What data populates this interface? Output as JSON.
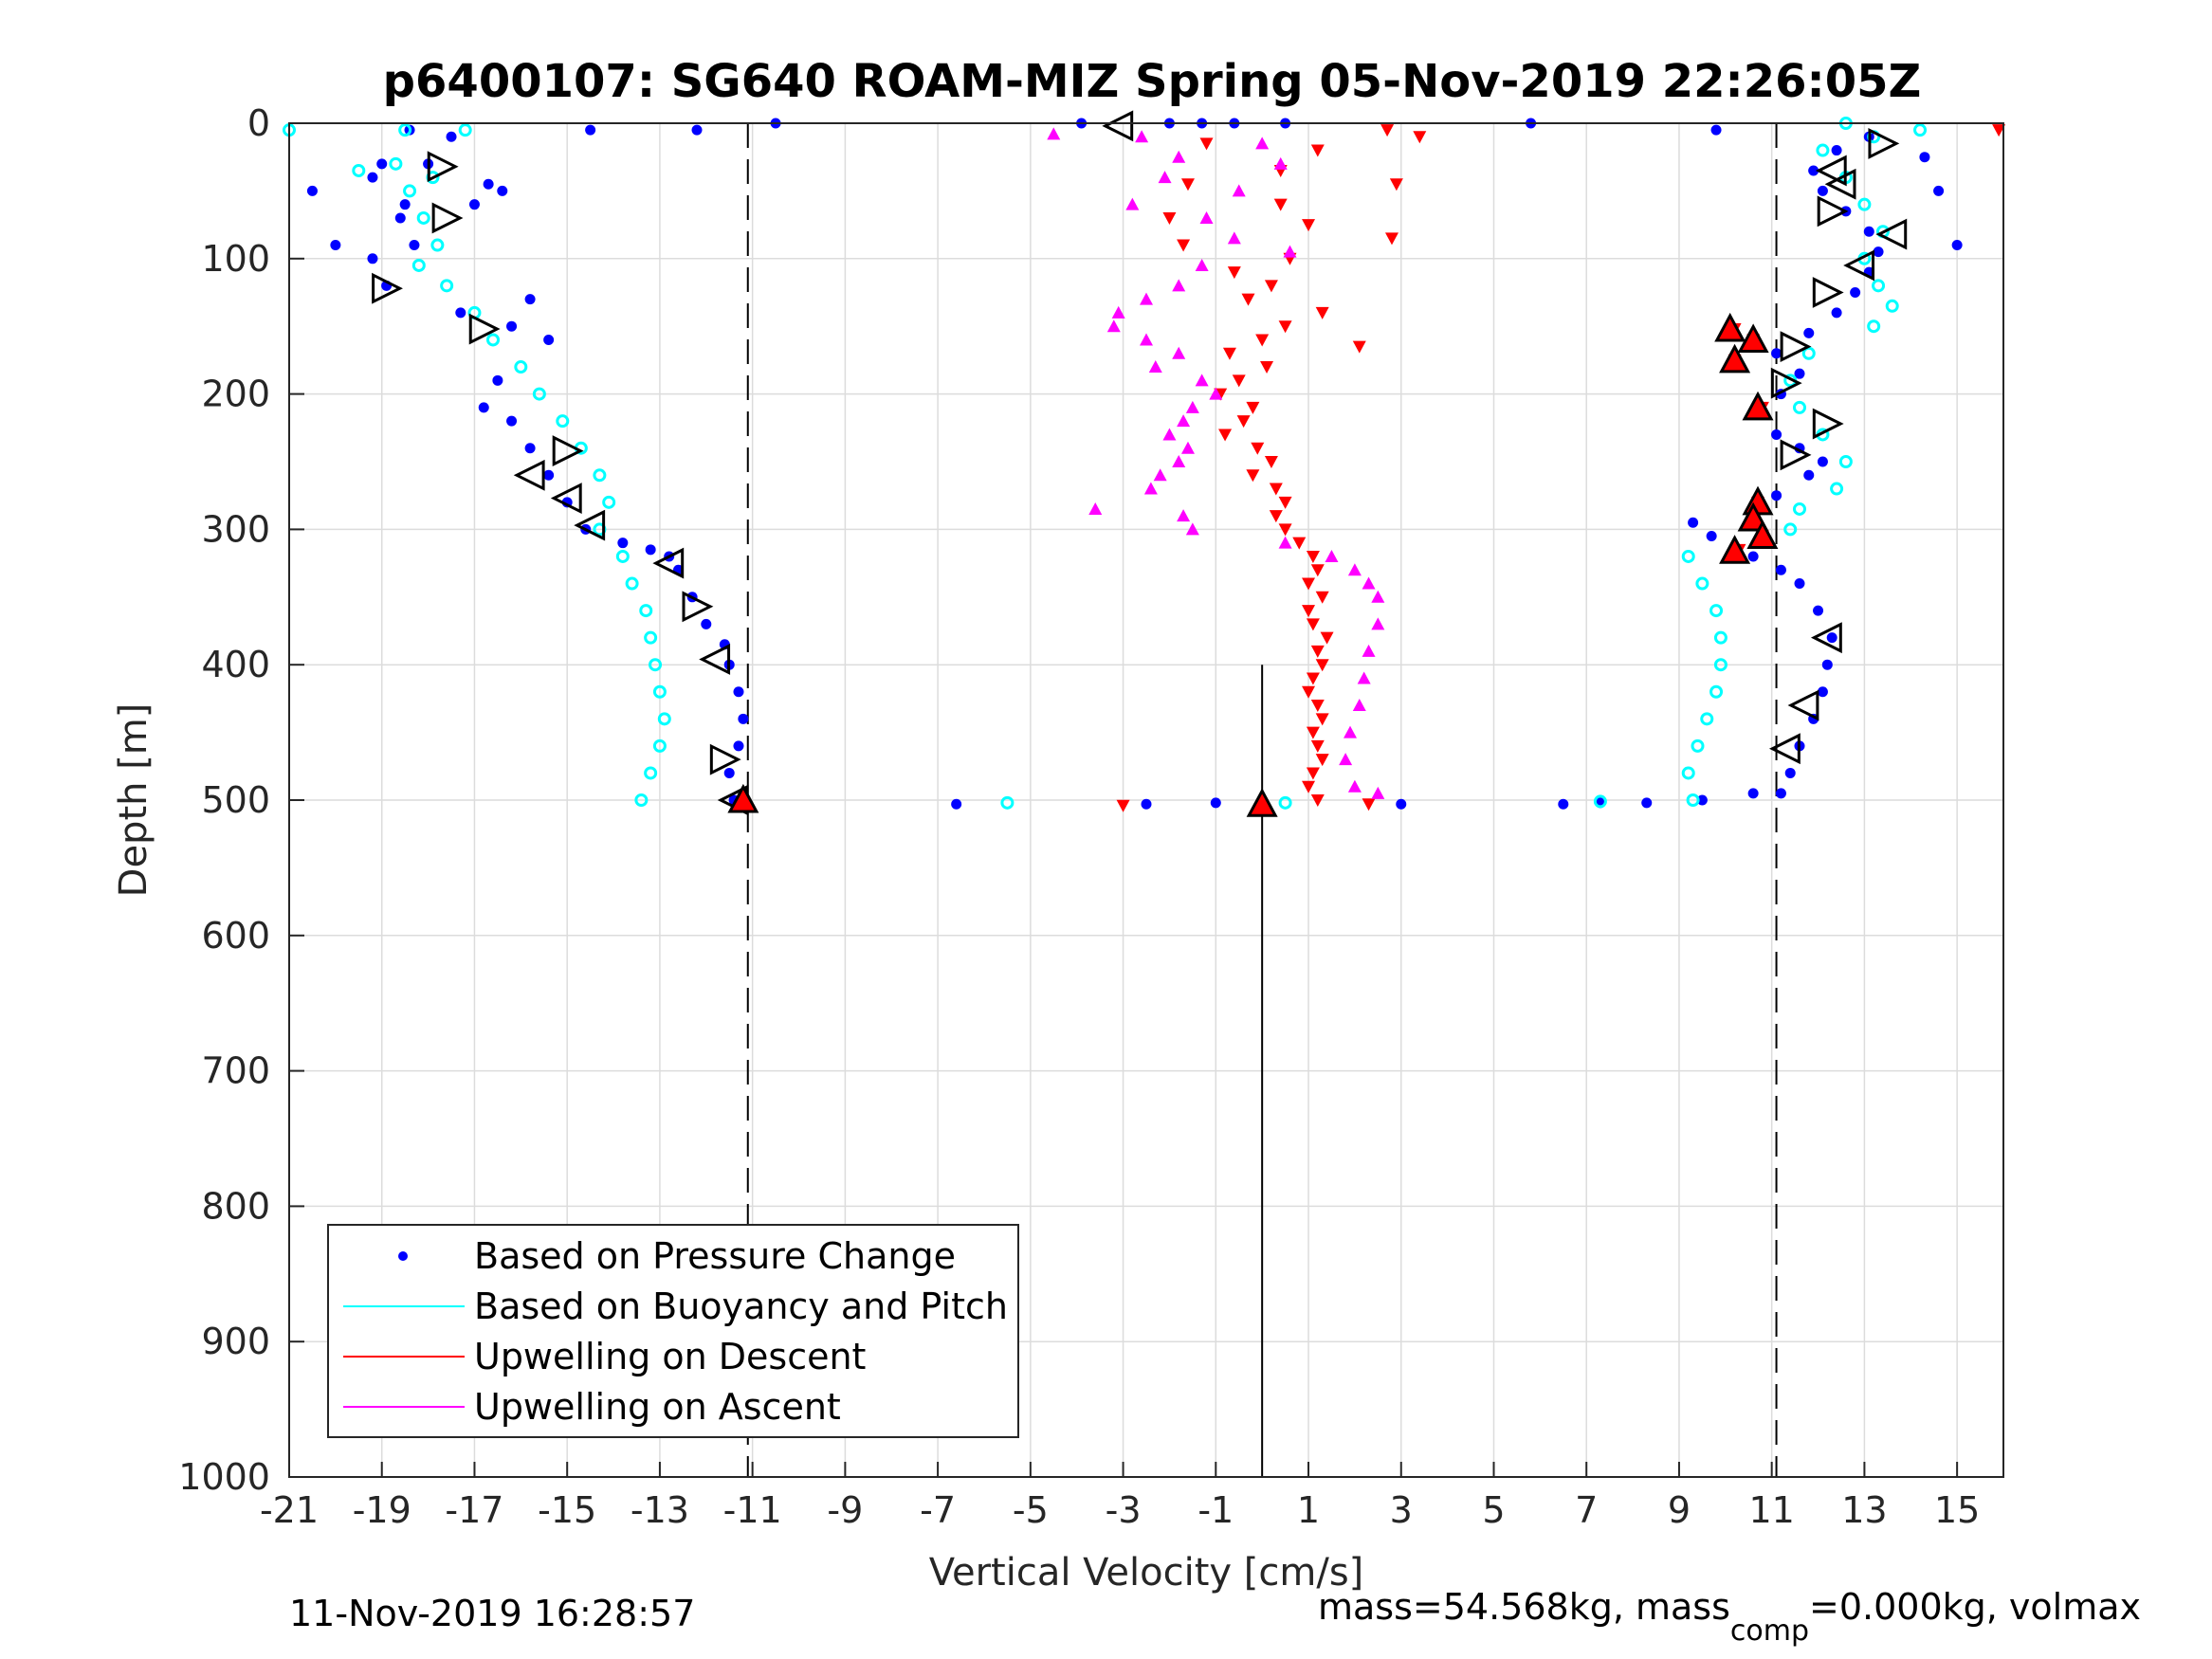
{
  "chart_data": {
    "type": "scatter",
    "title": "p6400107: SG640 ROAM-MIZ Spring 05-Nov-2019 22:26:05Z",
    "xlabel": "Vertical Velocity [cm/s]",
    "ylabel": "Depth [m]",
    "xlim": [
      -21,
      16
    ],
    "ylim": [
      0,
      1000
    ],
    "y_reversed": true,
    "xticks": [
      -21,
      -19,
      -17,
      -15,
      -13,
      -11,
      -9,
      -7,
      -5,
      -3,
      -1,
      1,
      3,
      5,
      7,
      9,
      11,
      13,
      15
    ],
    "yticks": [
      0,
      100,
      200,
      300,
      400,
      500,
      600,
      700,
      800,
      900,
      1000
    ],
    "grid": true,
    "legend_position": "bottom-left",
    "reference_lines": {
      "dashed_x": [
        -11.1,
        11.1
      ],
      "solid_x": [
        0
      ]
    },
    "series": [
      {
        "name": "Based on Pressure Change",
        "color": "#0000ff",
        "points": [
          [
            -20.5,
            50
          ],
          [
            -20,
            90
          ],
          [
            -18.9,
            120
          ],
          [
            -19.2,
            40
          ],
          [
            -18.3,
            90
          ],
          [
            -18.6,
            70
          ],
          [
            -18,
            30
          ],
          [
            -17.5,
            10
          ],
          [
            -17,
            60
          ],
          [
            -16.7,
            45
          ],
          [
            -16.4,
            50
          ],
          [
            -15.4,
            160
          ],
          [
            -15.8,
            130
          ],
          [
            -16.2,
            150
          ],
          [
            -17.3,
            140
          ],
          [
            -16.5,
            190
          ],
          [
            -16.8,
            210
          ],
          [
            -16.2,
            220
          ],
          [
            -15.8,
            240
          ],
          [
            -15.4,
            260
          ],
          [
            -15,
            280
          ],
          [
            -14.6,
            300
          ],
          [
            -13.8,
            310
          ],
          [
            -13.2,
            315
          ],
          [
            -12.8,
            320
          ],
          [
            -12.6,
            330
          ],
          [
            -12.3,
            350
          ],
          [
            -12,
            370
          ],
          [
            -11.6,
            385
          ],
          [
            -11.5,
            400
          ],
          [
            -11.3,
            420
          ],
          [
            -11.2,
            440
          ],
          [
            -11.3,
            460
          ],
          [
            -11.5,
            480
          ],
          [
            -11.4,
            500
          ],
          [
            -6.6,
            503
          ],
          [
            -2.5,
            503
          ],
          [
            -1,
            502
          ],
          [
            3,
            503
          ],
          [
            6.5,
            503
          ],
          [
            7.3,
            502
          ],
          [
            8.3,
            502
          ],
          [
            9.5,
            500
          ],
          [
            10.6,
            495
          ],
          [
            11.2,
            495
          ],
          [
            11.4,
            480
          ],
          [
            11.6,
            460
          ],
          [
            11.9,
            440
          ],
          [
            12.1,
            420
          ],
          [
            12.2,
            400
          ],
          [
            12.3,
            380
          ],
          [
            12,
            360
          ],
          [
            11.6,
            340
          ],
          [
            11.2,
            330
          ],
          [
            10.6,
            320
          ],
          [
            10.2,
            315
          ],
          [
            9.7,
            305
          ],
          [
            9.3,
            295
          ],
          [
            10.6,
            285
          ],
          [
            11.1,
            275
          ],
          [
            11.8,
            260
          ],
          [
            12.1,
            250
          ],
          [
            11.6,
            240
          ],
          [
            11.1,
            230
          ],
          [
            10.6,
            215
          ],
          [
            11.2,
            200
          ],
          [
            11.6,
            185
          ],
          [
            11.1,
            170
          ],
          [
            11.8,
            155
          ],
          [
            12.4,
            140
          ],
          [
            12.8,
            125
          ],
          [
            13.1,
            110
          ],
          [
            13.3,
            95
          ],
          [
            13.1,
            80
          ],
          [
            12.6,
            65
          ],
          [
            12.1,
            50
          ],
          [
            11.9,
            35
          ],
          [
            12.4,
            20
          ],
          [
            13.1,
            10
          ],
          [
            14.3,
            25
          ],
          [
            14.6,
            50
          ],
          [
            15,
            90
          ],
          [
            9.8,
            5
          ],
          [
            5.8,
            0
          ],
          [
            -10.5,
            0
          ],
          [
            -12.2,
            5
          ],
          [
            -14.5,
            5
          ],
          [
            -18.4,
            5
          ],
          [
            -19,
            30
          ],
          [
            -18.5,
            60
          ],
          [
            -19.2,
            100
          ],
          [
            -3.9,
            0
          ],
          [
            -2,
            0
          ],
          [
            -1.3,
            0
          ],
          [
            -0.6,
            0
          ],
          [
            0.5,
            0
          ]
        ]
      },
      {
        "name": "Based on Buoyancy and Pitch",
        "color": "#00ffff",
        "points": [
          [
            -21,
            5
          ],
          [
            -18.5,
            5
          ],
          [
            -17.2,
            5
          ],
          [
            -19.5,
            35
          ],
          [
            -18.7,
            30
          ],
          [
            -17.9,
            40
          ],
          [
            -18.4,
            50
          ],
          [
            -18.1,
            70
          ],
          [
            -17.8,
            90
          ],
          [
            -18.2,
            105
          ],
          [
            -17.6,
            120
          ],
          [
            -17,
            140
          ],
          [
            -16.6,
            160
          ],
          [
            -16,
            180
          ],
          [
            -15.6,
            200
          ],
          [
            -15.1,
            220
          ],
          [
            -14.7,
            240
          ],
          [
            -14.3,
            260
          ],
          [
            -14.1,
            280
          ],
          [
            -14.3,
            300
          ],
          [
            -13.8,
            320
          ],
          [
            -13.6,
            340
          ],
          [
            -13.3,
            360
          ],
          [
            -13.2,
            380
          ],
          [
            -13.1,
            400
          ],
          [
            -13,
            420
          ],
          [
            -12.9,
            440
          ],
          [
            -13,
            460
          ],
          [
            -13.2,
            480
          ],
          [
            -13.4,
            500
          ],
          [
            -5.5,
            502
          ],
          [
            0.5,
            502
          ],
          [
            7.3,
            501
          ],
          [
            9.3,
            500
          ],
          [
            9.2,
            480
          ],
          [
            9.4,
            460
          ],
          [
            9.6,
            440
          ],
          [
            9.8,
            420
          ],
          [
            9.9,
            400
          ],
          [
            9.9,
            380
          ],
          [
            9.8,
            360
          ],
          [
            9.5,
            340
          ],
          [
            9.2,
            320
          ],
          [
            11.4,
            300
          ],
          [
            11.6,
            285
          ],
          [
            12.4,
            270
          ],
          [
            12.6,
            250
          ],
          [
            12.1,
            230
          ],
          [
            11.6,
            210
          ],
          [
            11.4,
            190
          ],
          [
            11.8,
            170
          ],
          [
            13.2,
            150
          ],
          [
            13.6,
            135
          ],
          [
            13.3,
            120
          ],
          [
            13,
            100
          ],
          [
            13.4,
            80
          ],
          [
            13,
            60
          ],
          [
            12.6,
            40
          ],
          [
            12.1,
            20
          ],
          [
            13.2,
            10
          ],
          [
            12.6,
            0
          ],
          [
            14.2,
            5
          ]
        ]
      },
      {
        "name": "Upwelling on Descent",
        "color": "#ff0000",
        "points": [
          [
            2.7,
            5
          ],
          [
            3.4,
            10
          ],
          [
            1.2,
            20
          ],
          [
            -1.2,
            15
          ],
          [
            0.4,
            35
          ],
          [
            -1.6,
            45
          ],
          [
            2.9,
            45
          ],
          [
            0.4,
            60
          ],
          [
            -2,
            70
          ],
          [
            1,
            75
          ],
          [
            -1.7,
            90
          ],
          [
            2.8,
            85
          ],
          [
            0.6,
            100
          ],
          [
            -0.6,
            110
          ],
          [
            0.2,
            120
          ],
          [
            -0.3,
            130
          ],
          [
            1.3,
            140
          ],
          [
            0.5,
            150
          ],
          [
            0,
            160
          ],
          [
            2.1,
            165
          ],
          [
            -0.7,
            170
          ],
          [
            0.1,
            180
          ],
          [
            -0.5,
            190
          ],
          [
            -0.9,
            200
          ],
          [
            -0.2,
            210
          ],
          [
            -0.4,
            220
          ],
          [
            -0.8,
            230
          ],
          [
            -0.1,
            240
          ],
          [
            0.2,
            250
          ],
          [
            -0.2,
            260
          ],
          [
            0.3,
            270
          ],
          [
            0.5,
            280
          ],
          [
            0.3,
            290
          ],
          [
            0.5,
            300
          ],
          [
            0.8,
            310
          ],
          [
            1.1,
            320
          ],
          [
            1.2,
            330
          ],
          [
            1,
            340
          ],
          [
            1.3,
            350
          ],
          [
            1,
            360
          ],
          [
            1.1,
            370
          ],
          [
            1.4,
            380
          ],
          [
            1.2,
            390
          ],
          [
            1.3,
            400
          ],
          [
            1.1,
            410
          ],
          [
            1,
            420
          ],
          [
            1.2,
            430
          ],
          [
            1.3,
            440
          ],
          [
            1.1,
            450
          ],
          [
            1.2,
            460
          ],
          [
            1.3,
            470
          ],
          [
            1.1,
            480
          ],
          [
            1,
            490
          ],
          [
            1.2,
            500
          ],
          [
            -3,
            504
          ],
          [
            2.3,
            503
          ],
          [
            15.9,
            5
          ],
          [
            10.2,
            152
          ],
          [
            10.6,
            160
          ],
          [
            10.2,
            175
          ],
          [
            10.8,
            210
          ],
          [
            10.7,
            280
          ],
          [
            10.6,
            290
          ],
          [
            10.8,
            305
          ],
          [
            10.3,
            315
          ]
        ]
      },
      {
        "name": "Upwelling on Ascent",
        "color": "#ff00ff",
        "points": [
          [
            -4.5,
            8
          ],
          [
            -2.6,
            10
          ],
          [
            0,
            15
          ],
          [
            -1.8,
            25
          ],
          [
            0.4,
            30
          ],
          [
            -2.1,
            40
          ],
          [
            -0.5,
            50
          ],
          [
            -2.8,
            60
          ],
          [
            -1.2,
            70
          ],
          [
            -0.6,
            85
          ],
          [
            0.6,
            95
          ],
          [
            -1.3,
            105
          ],
          [
            -1.8,
            120
          ],
          [
            -2.5,
            130
          ],
          [
            -3.1,
            140
          ],
          [
            -3.2,
            150
          ],
          [
            -2.5,
            160
          ],
          [
            -1.8,
            170
          ],
          [
            -2.3,
            180
          ],
          [
            -1.3,
            190
          ],
          [
            -1,
            200
          ],
          [
            -1.5,
            210
          ],
          [
            -1.7,
            220
          ],
          [
            -2,
            230
          ],
          [
            -1.6,
            240
          ],
          [
            -1.8,
            250
          ],
          [
            -2.2,
            260
          ],
          [
            -2.4,
            270
          ],
          [
            -3.6,
            285
          ],
          [
            -1.7,
            290
          ],
          [
            -1.5,
            300
          ],
          [
            0.5,
            310
          ],
          [
            1.5,
            320
          ],
          [
            2,
            330
          ],
          [
            2.3,
            340
          ],
          [
            2.5,
            350
          ],
          [
            2.5,
            370
          ],
          [
            2.3,
            390
          ],
          [
            2.2,
            410
          ],
          [
            2.1,
            430
          ],
          [
            1.9,
            450
          ],
          [
            1.8,
            470
          ],
          [
            2,
            490
          ],
          [
            2.5,
            495
          ],
          [
            0,
            500
          ]
        ]
      }
    ],
    "triangle_markers": [
      {
        "dir": "left",
        "x": -3.1,
        "y": 2
      },
      {
        "dir": "right",
        "x": -17.7,
        "y": 32
      },
      {
        "dir": "right",
        "x": -17.6,
        "y": 70
      },
      {
        "dir": "right",
        "x": -18.9,
        "y": 122
      },
      {
        "dir": "right",
        "x": -16.8,
        "y": 152
      },
      {
        "dir": "right",
        "x": -15,
        "y": 242
      },
      {
        "dir": "left",
        "x": -15.8,
        "y": 260
      },
      {
        "dir": "left",
        "x": -15,
        "y": 277
      },
      {
        "dir": "left",
        "x": -14.5,
        "y": 297
      },
      {
        "dir": "left",
        "x": -12.8,
        "y": 325
      },
      {
        "dir": "right",
        "x": -12.2,
        "y": 357
      },
      {
        "dir": "left",
        "x": -11.8,
        "y": 396
      },
      {
        "dir": "right",
        "x": -11.6,
        "y": 470
      },
      {
        "dir": "left",
        "x": -11.4,
        "y": 500
      },
      {
        "dir": "right",
        "x": 13.4,
        "y": 15
      },
      {
        "dir": "left",
        "x": 12.3,
        "y": 35
      },
      {
        "dir": "left",
        "x": 12.5,
        "y": 45
      },
      {
        "dir": "right",
        "x": 12.3,
        "y": 65
      },
      {
        "dir": "left",
        "x": 13.6,
        "y": 82
      },
      {
        "dir": "left",
        "x": 12.9,
        "y": 105
      },
      {
        "dir": "right",
        "x": 12.2,
        "y": 125
      },
      {
        "dir": "right",
        "x": 11.5,
        "y": 165
      },
      {
        "dir": "right",
        "x": 11.3,
        "y": 192
      },
      {
        "dir": "right",
        "x": 12.2,
        "y": 222
      },
      {
        "dir": "right",
        "x": 11.5,
        "y": 245
      },
      {
        "dir": "left",
        "x": 12.2,
        "y": 380
      },
      {
        "dir": "left",
        "x": 11.7,
        "y": 430
      },
      {
        "dir": "left",
        "x": 11.3,
        "y": 462
      }
    ],
    "filled_triangles": [
      {
        "x": 10.1,
        "y": 152
      },
      {
        "x": 10.6,
        "y": 160
      },
      {
        "x": 10.2,
        "y": 175
      },
      {
        "x": 10.7,
        "y": 210
      },
      {
        "x": 10.7,
        "y": 280
      },
      {
        "x": 10.6,
        "y": 292
      },
      {
        "x": 10.8,
        "y": 305
      },
      {
        "x": 10.2,
        "y": 316
      },
      {
        "x": -11.2,
        "y": 500
      },
      {
        "x": 0,
        "y": 503
      }
    ]
  },
  "footer": {
    "timestamp": "11-Nov-2019 16:28:57",
    "mass_text": "mass=54.568kg, mass",
    "mass_sub": "comp",
    "mass_rest": "=0.000kg, volmax"
  }
}
